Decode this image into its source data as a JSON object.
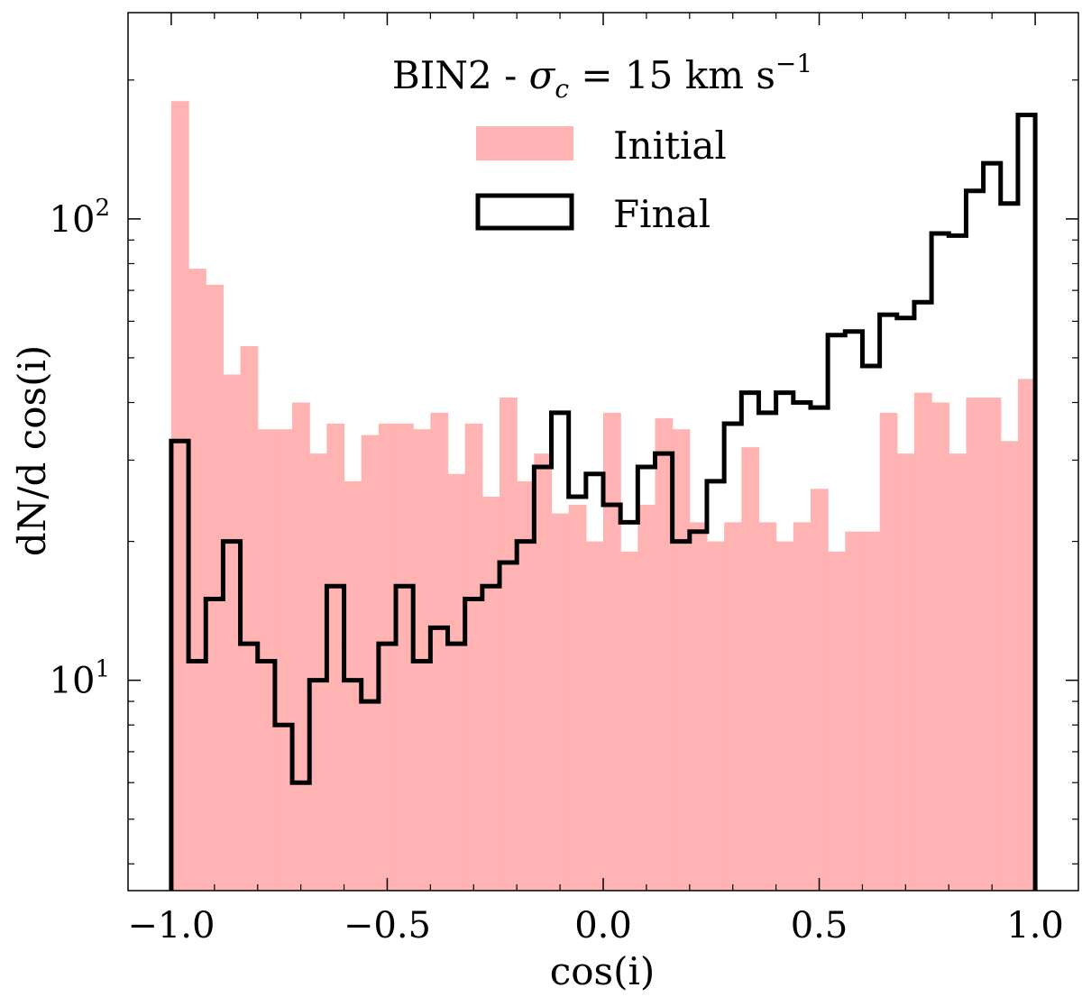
{
  "chart_data": {
    "type": "bar",
    "title": "BIN2 - σc = 15 km s−1",
    "title_parts": {
      "prefix": "BIN2 - ",
      "sigma": "σ",
      "sub": "c",
      "rest": " = 15 km s",
      "sup": "−1"
    },
    "xlabel": "cos(i)",
    "ylabel": "dN/d cos(i)",
    "xlim": [
      -1.1,
      1.1
    ],
    "ylim": [
      3.5,
      280
    ],
    "yscale": "log",
    "bin_edges_range": [
      -1.0,
      1.0
    ],
    "bin_count": 50,
    "xticks": [
      -1.0,
      -0.5,
      0.0,
      0.5,
      1.0
    ],
    "xtick_labels": [
      "−1.0",
      "−0.5",
      "0.0",
      "0.5",
      "1.0"
    ],
    "yticks": [
      10,
      100
    ],
    "ytick_labels": [
      {
        "base": "10",
        "exp": "1"
      },
      {
        "base": "10",
        "exp": "2"
      }
    ],
    "legend_position": "top-center",
    "series": [
      {
        "name": "Initial",
        "style": "filled",
        "color": "#ffb3b3",
        "values": [
          180,
          78,
          72,
          46,
          53,
          35,
          35,
          40,
          31,
          36,
          27,
          34,
          36,
          36,
          35,
          38,
          28,
          36,
          25,
          41,
          27,
          31,
          23,
          24,
          20,
          38,
          19,
          24,
          37,
          35,
          22,
          20,
          22,
          32,
          22,
          20,
          22,
          26,
          19,
          21,
          21,
          38,
          31,
          42,
          40,
          31,
          41,
          41,
          33,
          45
        ]
      },
      {
        "name": "Final",
        "style": "step",
        "color": "#000000",
        "values": [
          33,
          11,
          15,
          20,
          12,
          11,
          8,
          6,
          10,
          16,
          10,
          9,
          12,
          16,
          11,
          13,
          12,
          15,
          16,
          18,
          20,
          29,
          38,
          25,
          28,
          24,
          22,
          29,
          31,
          20,
          21,
          27,
          36,
          42,
          38,
          42,
          40,
          39,
          56,
          57,
          48,
          62,
          61,
          66,
          93,
          92,
          115,
          132,
          108,
          168
        ]
      }
    ]
  }
}
